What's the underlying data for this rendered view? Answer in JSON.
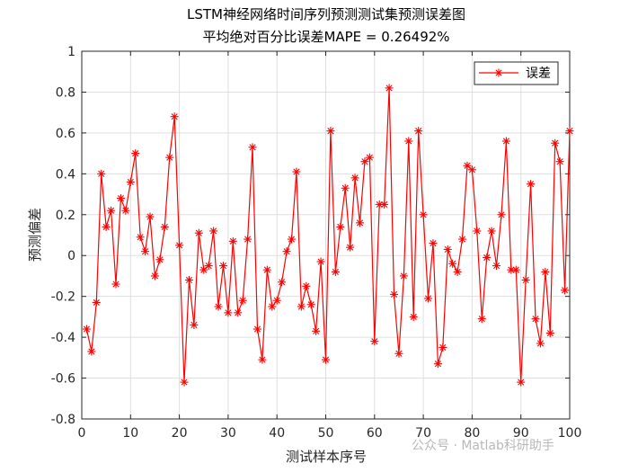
{
  "chart_data": {
    "type": "line",
    "title": "LSTM神经网络时间序列预测测试集预测误差图",
    "subtitle": "平均绝对百分比误差MAPE = 0.26492%",
    "xlabel": "测试样本序号",
    "ylabel": "预测偏差",
    "xlim": [
      0,
      100
    ],
    "ylim": [
      -0.8,
      1
    ],
    "xticks": [
      "0",
      "10",
      "20",
      "30",
      "40",
      "50",
      "60",
      "70",
      "80",
      "90",
      "100"
    ],
    "yticks": [
      "-0.8",
      "-0.6",
      "-0.4",
      "-0.2",
      "0",
      "0.2",
      "0.4",
      "0.6",
      "0.8",
      "1"
    ],
    "grid": true,
    "legend_position": "top-right",
    "series": [
      {
        "name": "误差",
        "color": "#ff0000",
        "marker": "asterisk",
        "x": [
          1,
          2,
          3,
          4,
          5,
          6,
          7,
          8,
          9,
          10,
          11,
          12,
          13,
          14,
          15,
          16,
          17,
          18,
          19,
          20,
          21,
          22,
          23,
          24,
          25,
          26,
          27,
          28,
          29,
          30,
          31,
          32,
          33,
          34,
          35,
          36,
          37,
          38,
          39,
          40,
          41,
          42,
          43,
          44,
          45,
          46,
          47,
          48,
          49,
          50,
          51,
          52,
          53,
          54,
          55,
          56,
          57,
          58,
          59,
          60,
          61,
          62,
          63,
          64,
          65,
          66,
          67,
          68,
          69,
          70,
          71,
          72,
          73,
          74,
          75,
          76,
          77,
          78,
          79,
          80,
          81,
          82,
          83,
          84,
          85,
          86,
          87,
          88,
          89,
          90,
          91,
          92,
          93,
          94,
          95,
          96,
          97,
          98,
          99,
          100
        ],
        "values": [
          -0.36,
          -0.47,
          -0.23,
          0.4,
          0.14,
          0.22,
          -0.14,
          0.28,
          0.22,
          0.36,
          0.5,
          0.09,
          0.02,
          0.19,
          -0.1,
          -0.02,
          0.14,
          0.48,
          0.68,
          0.05,
          -0.62,
          -0.12,
          -0.34,
          0.11,
          -0.07,
          -0.05,
          0.12,
          -0.25,
          -0.05,
          -0.28,
          0.07,
          -0.28,
          -0.22,
          0.08,
          0.53,
          -0.36,
          -0.51,
          -0.07,
          -0.25,
          -0.22,
          -0.13,
          0.02,
          0.08,
          0.41,
          -0.25,
          -0.15,
          -0.24,
          -0.37,
          -0.03,
          -0.51,
          0.61,
          -0.08,
          0.14,
          0.33,
          0.04,
          0.38,
          0.16,
          0.46,
          0.48,
          -0.42,
          0.25,
          0.25,
          0.82,
          -0.19,
          -0.48,
          -0.1,
          0.56,
          -0.3,
          0.61,
          0.2,
          -0.21,
          0.06,
          -0.53,
          -0.45,
          0.03,
          -0.04,
          -0.08,
          0.08,
          0.44,
          0.42,
          0.12,
          -0.31,
          -0.01,
          0.12,
          -0.05,
          0.2,
          0.56,
          -0.07,
          -0.07,
          -0.62,
          -0.12,
          0.35,
          -0.31,
          -0.43,
          -0.08,
          -0.38,
          0.55,
          0.46,
          -0.17,
          0.61
        ]
      }
    ]
  },
  "watermark": "公众号 · Matlab科研助手"
}
